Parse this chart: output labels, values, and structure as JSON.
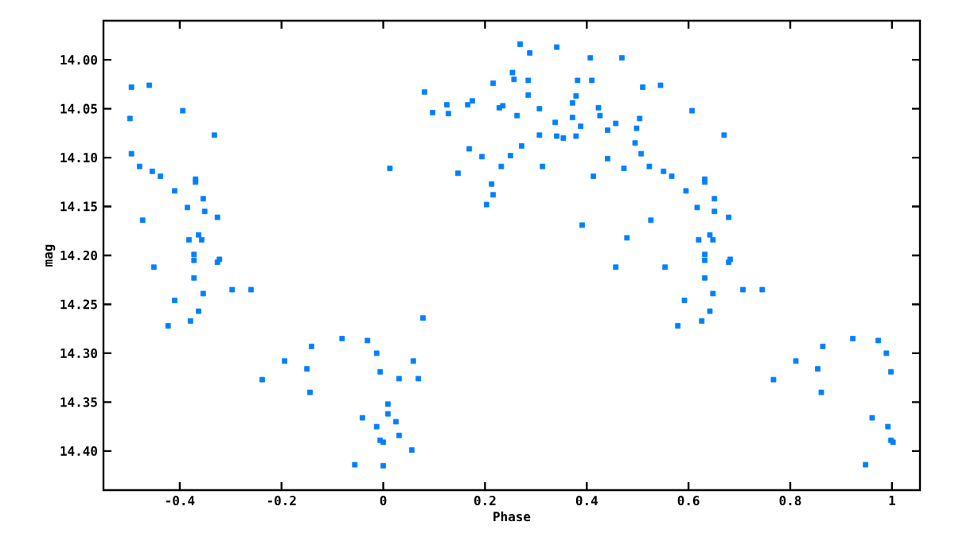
{
  "chart_data": {
    "type": "scatter",
    "xlabel": "Phase",
    "ylabel": "mag",
    "marker": "square",
    "xlim": [
      -0.55,
      1.055
    ],
    "ylim": [
      14.44,
      13.96
    ],
    "xticks": [
      -0.4,
      -0.2,
      0,
      0.2,
      0.4,
      0.6,
      0.8,
      1
    ],
    "yticks": [
      {
        "value": 14.0,
        "label": "14.00"
      },
      {
        "value": 14.05,
        "label": "14.05"
      },
      {
        "value": 14.1,
        "label": "14.10"
      },
      {
        "value": 14.15,
        "label": "14.15"
      },
      {
        "value": 14.2,
        "label": "14.20"
      },
      {
        "value": 14.25,
        "label": "14.25"
      },
      {
        "value": 14.3,
        "label": "14.30"
      },
      {
        "value": 14.35,
        "label": "14.35"
      },
      {
        "value": 14.4,
        "label": "14.40"
      }
    ],
    "series": [
      {
        "color": "#0080ff",
        "x": [
          -0.495,
          -0.46,
          -0.394,
          -0.498,
          -0.332,
          -0.495,
          -0.479,
          -0.454,
          -0.438,
          -0.369,
          -0.369,
          -0.41,
          -0.354,
          -0.385,
          -0.351,
          -0.326,
          -0.473,
          -0.363,
          -0.382,
          -0.357,
          -0.372,
          -0.372,
          -0.322,
          -0.326,
          -0.451,
          -0.372,
          -0.354,
          -0.297,
          -0.26,
          -0.41,
          -0.363,
          -0.379,
          -0.423,
          -0.081,
          -0.031,
          -0.141,
          -0.194,
          -0.15,
          -0.238,
          -0.144,
          -0.041,
          -0.056,
          0.269,
          0.341,
          0.288,
          0.407,
          0.469,
          0.254,
          0.257,
          0.285,
          0.382,
          0.41,
          0.216,
          0.51,
          0.081,
          0.285,
          0.379,
          0.175,
          0.125,
          0.166,
          0.372,
          0.228,
          0.235,
          0.423,
          0.307,
          0.097,
          0.128,
          0.263,
          0.426,
          0.372,
          0.504,
          0.338,
          0.457,
          0.388,
          0.441,
          0.498,
          0.307,
          0.341,
          0.354,
          0.379,
          0.495,
          0.272,
          0.169,
          0.507,
          0.194,
          0.25,
          0.441,
          0.013,
          0.232,
          0.313,
          0.473,
          0.523,
          0.147,
          0.413,
          0.213,
          0.216,
          0.203,
          0.526,
          0.391,
          0.479,
          0.457,
          0.078,
          -0.013,
          0.059,
          -0.006,
          0.031,
          0.069,
          0.009,
          0.009,
          0.025,
          -0.013,
          -0.006,
          0.0,
          0.031,
          0.056,
          0.0,
          0.545,
          0.607,
          0.67,
          0.551,
          0.567,
          0.632,
          0.632,
          0.595,
          0.651,
          0.617,
          0.651,
          0.679,
          0.642,
          0.62,
          0.648,
          0.632,
          0.632,
          0.682,
          0.679,
          0.554,
          0.632,
          0.648,
          0.707,
          0.745,
          0.592,
          0.642,
          0.626,
          0.579,
          0.923,
          0.973,
          0.864,
          0.811,
          0.989,
          0.854,
          0.998,
          0.767,
          0.861,
          0.961,
          0.992,
          0.998,
          1.002,
          0.948
        ],
        "values": [
          14.028,
          14.026,
          14.052,
          14.06,
          14.077,
          14.096,
          14.109,
          14.114,
          14.119,
          14.122,
          14.125,
          14.134,
          14.142,
          14.151,
          14.155,
          14.161,
          14.164,
          14.179,
          14.184,
          14.184,
          14.199,
          14.205,
          14.204,
          14.207,
          14.212,
          14.223,
          14.239,
          14.235,
          14.235,
          14.246,
          14.257,
          14.267,
          14.272,
          14.285,
          14.287,
          14.293,
          14.308,
          14.316,
          14.327,
          14.34,
          14.366,
          14.414,
          13.984,
          13.987,
          13.993,
          13.998,
          13.998,
          14.013,
          14.02,
          14.021,
          14.021,
          14.021,
          14.024,
          14.028,
          14.033,
          14.036,
          14.037,
          14.042,
          14.046,
          14.046,
          14.044,
          14.049,
          14.047,
          14.049,
          14.05,
          14.054,
          14.055,
          14.057,
          14.057,
          14.059,
          14.06,
          14.064,
          14.065,
          14.068,
          14.072,
          14.07,
          14.077,
          14.078,
          14.08,
          14.078,
          14.085,
          14.088,
          14.091,
          14.096,
          14.099,
          14.098,
          14.101,
          14.111,
          14.109,
          14.109,
          14.111,
          14.109,
          14.116,
          14.119,
          14.127,
          14.138,
          14.148,
          14.164,
          14.169,
          14.182,
          14.212,
          14.264,
          14.3,
          14.308,
          14.319,
          14.326,
          14.326,
          14.352,
          14.362,
          14.37,
          14.375,
          14.389,
          14.391,
          14.384,
          14.399,
          14.415,
          14.026,
          14.052,
          14.077,
          14.114,
          14.119,
          14.122,
          14.125,
          14.134,
          14.142,
          14.151,
          14.155,
          14.161,
          14.179,
          14.184,
          14.184,
          14.199,
          14.205,
          14.204,
          14.207,
          14.212,
          14.223,
          14.239,
          14.235,
          14.235,
          14.246,
          14.257,
          14.267,
          14.272,
          14.285,
          14.287,
          14.293,
          14.308,
          14.3,
          14.316,
          14.319,
          14.327,
          14.34,
          14.366,
          14.375,
          14.389,
          14.391,
          14.414
        ]
      }
    ]
  }
}
